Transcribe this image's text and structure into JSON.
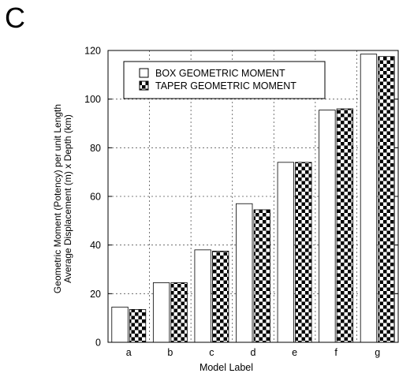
{
  "panel_label": "C",
  "chart_data": {
    "type": "bar",
    "title": "",
    "xlabel": "Model Label",
    "ylabel_line1": "Geometric Moment (Potency) per unit Length",
    "ylabel_line2": "Average Displacement (m) x Depth (km)",
    "categories": [
      "a",
      "b",
      "c",
      "d",
      "e",
      "f",
      "g"
    ],
    "ylim": [
      0,
      120
    ],
    "yticks": [
      0,
      20,
      40,
      60,
      80,
      100,
      120
    ],
    "grid": true,
    "legend_position": "top-left",
    "series": [
      {
        "name": "BOX GEOMETRIC MOMENT",
        "pattern": "open",
        "values": [
          14.5,
          24.5,
          38,
          57,
          74,
          95.5,
          118.5
        ]
      },
      {
        "name": "TAPER GEOMETRIC MOMENT",
        "pattern": "checkered",
        "values": [
          13.5,
          24.5,
          37.5,
          54.5,
          74,
          96,
          117.5
        ]
      }
    ]
  }
}
